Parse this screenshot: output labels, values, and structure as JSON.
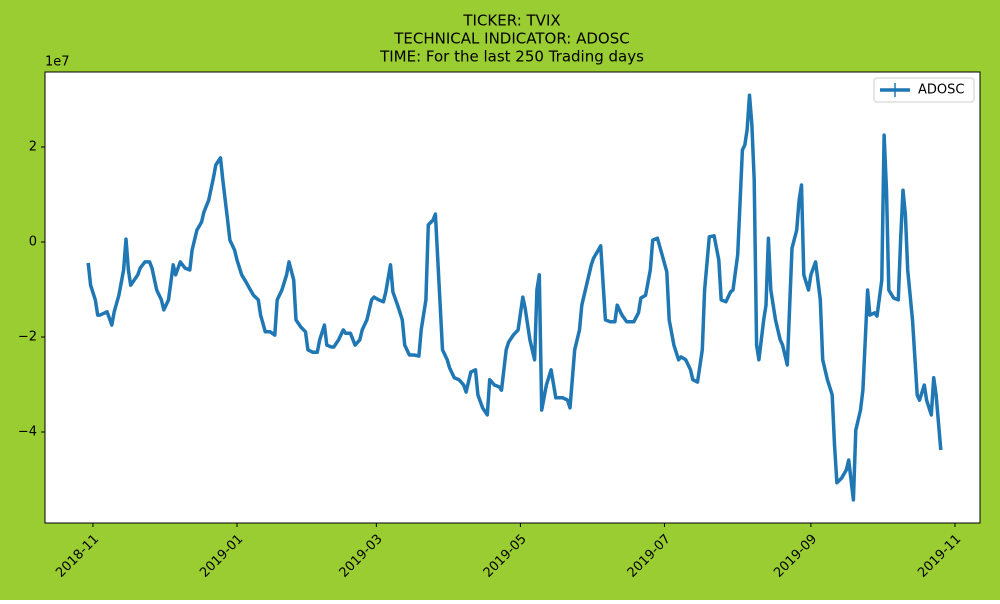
{
  "chart_data": {
    "type": "line",
    "title": [
      "TICKER:  TVIX",
      "TECHNICAL INDICATOR:  ADOSC",
      "TIME: For the last 250 Trading days"
    ],
    "y_offset_label": "1e7",
    "legend": "upper right",
    "background": "#9acd32",
    "xlim": [
      17815.7,
      18211.6
    ],
    "xticks": [
      {
        "value": 17836,
        "label": "2018-11"
      },
      {
        "value": 17897,
        "label": "2019-01"
      },
      {
        "value": 17956,
        "label": "2019-03"
      },
      {
        "value": 18017,
        "label": "2019-05"
      },
      {
        "value": 18078,
        "label": "2019-07"
      },
      {
        "value": 18140,
        "label": "2019-09"
      },
      {
        "value": 18201,
        "label": "2019-11"
      }
    ],
    "ylim": [
      -59160000,
      35790000
    ],
    "yticks": [
      {
        "value": -40000000.0,
        "label": "−4"
      },
      {
        "value": -20000000.0,
        "label": "−2"
      },
      {
        "value": 0,
        "label": "0"
      },
      {
        "value": 20000000.0,
        "label": "2"
      }
    ],
    "x": [
      17834,
      17835,
      17837,
      17838,
      17839,
      17842,
      17844,
      17845,
      17847,
      17849,
      17850,
      17851,
      17852,
      17855,
      17856,
      17858,
      17860,
      17861,
      17863,
      17865,
      17866,
      17868,
      17870,
      17871,
      17873,
      17875,
      17877,
      17878,
      17880,
      17882,
      17883,
      17885,
      17887,
      17888,
      17890,
      17891,
      17893,
      17894,
      17896,
      17897,
      17899,
      17901,
      17902,
      17904,
      17906,
      17907,
      17909,
      17911,
      17913,
      17914,
      17916,
      17918,
      17919,
      17921,
      17922,
      17924,
      17926,
      17927,
      17929,
      17931,
      17932,
      17934,
      17935,
      17937,
      17938,
      17940,
      17942,
      17943,
      17945,
      17947,
      17949,
      17950,
      17952,
      17954,
      17955,
      17957,
      17959,
      17960,
      17962,
      17963,
      17965,
      17967,
      17968,
      17970,
      17972,
      17974,
      17975,
      17977,
      17978,
      17980,
      17981,
      17982,
      17984,
      17986,
      17987,
      17989,
      17991,
      17993,
      17994,
      17996,
      17998,
      17999,
      18001,
      18003,
      18004,
      18006,
      18008,
      18009,
      18011,
      18012,
      18014,
      18016,
      18018,
      18019,
      18021,
      18023,
      18024,
      18025,
      18026,
      18028,
      18030,
      18032,
      18033,
      18035,
      18037,
      18038,
      18040,
      18042,
      18043,
      18045,
      18047,
      18048,
      18050,
      18051,
      18053,
      18055,
      18057,
      18058,
      18060,
      18062,
      18063,
      18065,
      18067,
      18068,
      18070,
      18072,
      18073,
      18075,
      18077,
      18079,
      18080,
      18082,
      18084,
      18085,
      18087,
      18089,
      18090,
      18092,
      18094,
      18095,
      18097,
      18099,
      18101,
      18102,
      18104,
      18106,
      18107,
      18109,
      18111,
      18112,
      18113,
      18114,
      18115,
      18116,
      18117,
      18118,
      18120,
      18121,
      18122,
      18123,
      18125,
      18127,
      18128,
      18130,
      18132,
      18134,
      18135,
      18136,
      18137,
      18139,
      18140,
      18142,
      18144,
      18145,
      18147,
      18149,
      18150,
      18151,
      18153,
      18155,
      18156,
      18158,
      18159,
      18161,
      18162,
      18164,
      18165,
      18167,
      18168,
      18170,
      18171,
      18172,
      18173,
      18175,
      18177,
      18178,
      18179,
      18180,
      18181,
      18183,
      18185,
      18186,
      18188,
      18189,
      18191,
      18192,
      18193,
      18195
    ],
    "series": [
      {
        "name": "ADOSC",
        "color": "#1f77b4",
        "values": [
          -4400000.0,
          -9100000.0,
          -12200000.0,
          -15400000.0,
          -15400000.0,
          -14700000.0,
          -17500000.0,
          -14700000.0,
          -11200000.0,
          -5900000.0,
          600000.0,
          -5900000.0,
          -9100000.0,
          -6900000.0,
          -5500000.0,
          -4200000.0,
          -4200000.0,
          -5500000.0,
          -10100000.0,
          -12200000.0,
          -14300000.0,
          -12200000.0,
          -4800000.0,
          -6900000.0,
          -4200000.0,
          -5500000.0,
          -5900000.0,
          -1700000.0,
          2500000.0,
          4200000.0,
          6300000.0,
          8800000.0,
          13500000.0,
          16200000.0,
          17700000.0,
          13100000.0,
          4600000.0,
          400000.0,
          -1700000.0,
          -3800000.0,
          -6900000.0,
          -8600000.0,
          -9500000.0,
          -11200000.0,
          -12200000.0,
          -15400000.0,
          -18900000.0,
          -18900000.0,
          -19600000.0,
          -12200000.0,
          -10100000.0,
          -6900000.0,
          -4200000.0,
          -8000000.0,
          -16400000.0,
          -17900000.0,
          -18900000.0,
          -22700000.0,
          -23200000.0,
          -23200000.0,
          -20600000.0,
          -17500000.0,
          -21700000.0,
          -22100000.0,
          -22100000.0,
          -20600000.0,
          -18500000.0,
          -19200000.0,
          -19200000.0,
          -21700000.0,
          -20600000.0,
          -18500000.0,
          -16400000.0,
          -12200000.0,
          -11600000.0,
          -12200000.0,
          -12600000.0,
          -10500000.0,
          -4800000.0,
          -10500000.0,
          -13300000.0,
          -16400000.0,
          -21700000.0,
          -23800000.0,
          -23800000.0,
          -24000000.0,
          -18500000.0,
          -12200000.0,
          3600000.0,
          4600000.0,
          5900000.0,
          -3800000.0,
          -22700000.0,
          -24800000.0,
          -26500000.0,
          -28600000.0,
          -29000000.0,
          -30100000.0,
          -31600000.0,
          -27400000.0,
          -26900000.0,
          -32200000.0,
          -34900000.0,
          -36400000.0,
          -29000000.0,
          -30100000.0,
          -30500000.0,
          -31200000.0,
          -22700000.0,
          -21100000.0,
          -19600000.0,
          -18500000.0,
          -11600000.0,
          -13900000.0,
          -20600000.0,
          -24800000.0,
          -10100000.0,
          -6900000.0,
          -35400000.0,
          -30100000.0,
          -26900000.0,
          -32800000.0,
          -32800000.0,
          -32800000.0,
          -33300000.0,
          -34900000.0,
          -22700000.0,
          -18500000.0,
          -13300000.0,
          -9100000.0,
          -4800000.0,
          -3400000.0,
          -1700000.0,
          -800000.0,
          -16400000.0,
          -16800000.0,
          -16800000.0,
          -13300000.0,
          -15400000.0,
          -16800000.0,
          -16800000.0,
          -16800000.0,
          -14900000.0,
          -11800000.0,
          -11200000.0,
          -5900000.0,
          400000.0,
          800000.0,
          -2700000.0,
          -6300000.0,
          -16400000.0,
          -21700000.0,
          -24800000.0,
          -24200000.0,
          -24800000.0,
          -26900000.0,
          -29000000.0,
          -29500000.0,
          -22700000.0,
          -10100000.0,
          1100000.0,
          1300000.0,
          -3800000.0,
          -12200000.0,
          -12600000.0,
          -10500000.0,
          -10100000.0,
          -2700000.0,
          19400000.0,
          20400000.0,
          23600000.0,
          30900000.0,
          24600000.0,
          13100000.0,
          -21700000.0,
          -24800000.0,
          -16400000.0,
          -13300000.0,
          800000.0,
          -10100000.0,
          -16400000.0,
          -20600000.0,
          -21700000.0,
          -25900000.0,
          -1300000.0,
          2500000.0,
          8800000.0,
          12000000.0,
          -6900000.0,
          -10100000.0,
          -6900000.0,
          -4200000.0,
          -12200000.0,
          -24800000.0,
          -29000000.0,
          -32200000.0,
          -42700000.0,
          -50700000.0,
          -49700000.0,
          -48000000.0,
          -45900000.0,
          -54300000.0,
          -39600000.0,
          -35400000.0,
          -31200000.0,
          -10100000.0,
          -15400000.0,
          -14900000.0,
          -15600000.0,
          -8000000.0,
          22500000.0,
          10900000.0,
          -10100000.0,
          -11800000.0,
          -12200000.0,
          400000.0,
          10900000.0,
          5700000.0,
          -5900000.0,
          -16400000.0,
          -32200000.0,
          -33300000.0,
          -30100000.0,
          -33300000.0,
          -36400000.0,
          -28600000.0,
          -32200000.0,
          -43800000.0
        ]
      }
    ]
  }
}
